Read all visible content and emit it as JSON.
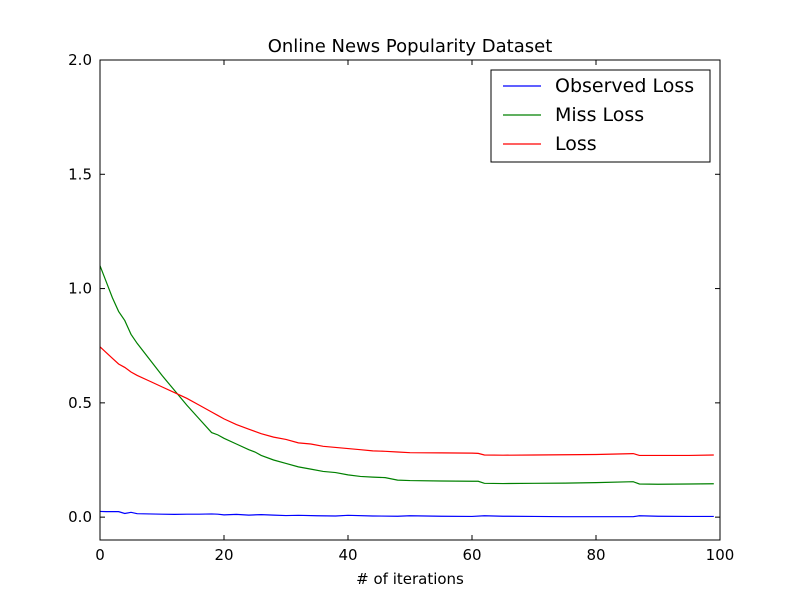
{
  "chart_data": {
    "type": "line",
    "title": "Online News Popularity Dataset",
    "xlabel": "# of iterations",
    "ylabel": "",
    "xlim": [
      0,
      100
    ],
    "ylim": [
      -0.1,
      2.0
    ],
    "xticks": [
      0,
      20,
      40,
      60,
      80,
      100
    ],
    "xtick_labels": [
      "0",
      "20",
      "40",
      "60",
      "80",
      "100"
    ],
    "yticks": [
      0.0,
      0.5,
      1.0,
      1.5,
      2.0
    ],
    "ytick_labels": [
      "0.0",
      "0.5",
      "1.0",
      "1.5",
      "2.0"
    ],
    "grid": false,
    "legend_position": "top-right",
    "series": [
      {
        "name": "Observed Loss",
        "color": "#0000ff",
        "x": [
          0,
          1,
          2,
          3,
          4,
          5,
          6,
          8,
          10,
          12,
          14,
          16,
          18,
          19,
          20,
          22,
          24,
          26,
          28,
          30,
          32,
          35,
          38,
          40,
          44,
          48,
          50,
          55,
          60,
          62,
          65,
          70,
          75,
          80,
          86,
          87,
          90,
          95,
          99
        ],
        "y": [
          0.025,
          0.024,
          0.024,
          0.024,
          0.016,
          0.021,
          0.015,
          0.014,
          0.013,
          0.012,
          0.013,
          0.013,
          0.014,
          0.013,
          0.01,
          0.012,
          0.009,
          0.011,
          0.009,
          0.007,
          0.008,
          0.006,
          0.005,
          0.008,
          0.005,
          0.004,
          0.006,
          0.004,
          0.003,
          0.006,
          0.004,
          0.003,
          0.002,
          0.002,
          0.002,
          0.006,
          0.004,
          0.003,
          0.003
        ]
      },
      {
        "name": "Miss Loss",
        "color": "#008000",
        "x": [
          0,
          1,
          2,
          3,
          4,
          5,
          6,
          8,
          10,
          12,
          14,
          16,
          18,
          19,
          20,
          22,
          24,
          25,
          26,
          28,
          30,
          32,
          34,
          36,
          38,
          40,
          42,
          44,
          46,
          48,
          50,
          55,
          60,
          61,
          62,
          65,
          70,
          75,
          80,
          86,
          87,
          90,
          95,
          99
        ],
        "y": [
          1.1,
          1.03,
          0.96,
          0.9,
          0.86,
          0.8,
          0.76,
          0.69,
          0.62,
          0.555,
          0.49,
          0.43,
          0.37,
          0.36,
          0.345,
          0.32,
          0.295,
          0.285,
          0.27,
          0.25,
          0.235,
          0.22,
          0.21,
          0.2,
          0.195,
          0.185,
          0.178,
          0.175,
          0.173,
          0.162,
          0.16,
          0.158,
          0.157,
          0.157,
          0.148,
          0.147,
          0.148,
          0.149,
          0.151,
          0.155,
          0.145,
          0.144,
          0.145,
          0.146
        ]
      },
      {
        "name": "Loss",
        "color": "#ff0000",
        "x": [
          0,
          1,
          2,
          3,
          4,
          5,
          6,
          8,
          10,
          12,
          14,
          16,
          18,
          19,
          20,
          22,
          24,
          25,
          26,
          28,
          30,
          32,
          34,
          36,
          38,
          40,
          42,
          44,
          46,
          48,
          50,
          55,
          60,
          61,
          62,
          65,
          70,
          75,
          80,
          86,
          87,
          90,
          95,
          99
        ],
        "y": [
          0.745,
          0.72,
          0.695,
          0.67,
          0.655,
          0.635,
          0.62,
          0.595,
          0.57,
          0.545,
          0.52,
          0.49,
          0.46,
          0.445,
          0.43,
          0.405,
          0.385,
          0.375,
          0.365,
          0.35,
          0.34,
          0.325,
          0.32,
          0.31,
          0.305,
          0.3,
          0.295,
          0.29,
          0.288,
          0.285,
          0.282,
          0.281,
          0.28,
          0.279,
          0.272,
          0.271,
          0.272,
          0.273,
          0.274,
          0.278,
          0.27,
          0.27,
          0.27,
          0.272
        ]
      }
    ]
  }
}
